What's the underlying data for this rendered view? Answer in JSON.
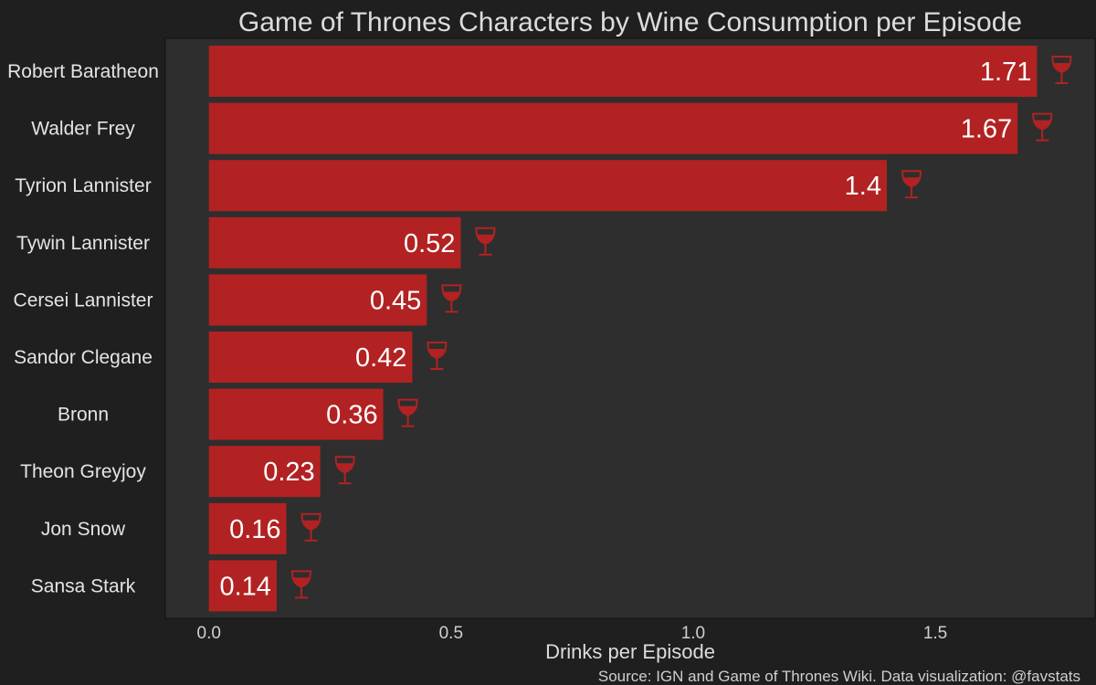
{
  "colors": {
    "background": "#1f1f1f",
    "plot_background": "#2e2e2e",
    "bar": "#b22222",
    "icon": "#b22222",
    "text": "#dcdcdc"
  },
  "icons": {
    "bar_end": "wine-glass-icon"
  },
  "source_note": "Source: IGN and Game of Thrones Wiki. Data visualization: @favstats",
  "chart_data": {
    "type": "bar",
    "orientation": "horizontal",
    "title": "Game of Thrones Characters by Wine Consumption per Episode",
    "xlabel": "Drinks per Episode",
    "ylabel": "",
    "xlim": [
      -0.09,
      1.83
    ],
    "xticks": [
      0.0,
      0.5,
      1.0,
      1.5
    ],
    "xtick_labels": [
      "0.0",
      "0.5",
      "1.0",
      "1.5"
    ],
    "grid": false,
    "categories": [
      "Robert Baratheon",
      "Walder Frey",
      "Tyrion Lannister",
      "Tywin Lannister",
      "Cersei Lannister",
      "Sandor Clegane",
      "Bronn",
      "Theon Greyjoy",
      "Jon Snow",
      "Sansa Stark"
    ],
    "values": [
      1.71,
      1.67,
      1.4,
      0.52,
      0.45,
      0.42,
      0.36,
      0.23,
      0.16,
      0.14
    ],
    "value_labels": [
      "1.71",
      "1.67",
      "1.4",
      "0.52",
      "0.45",
      "0.42",
      "0.36",
      "0.23",
      "0.16",
      "0.14"
    ]
  }
}
